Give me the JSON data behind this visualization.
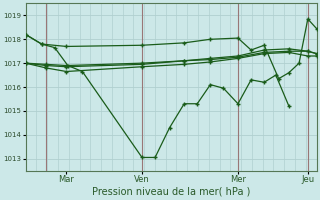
{
  "xlabel": "Pression niveau de la mer( hPa )",
  "bg_color": "#cce8e8",
  "grid_color": "#b0d0d0",
  "line_color": "#1a5c1a",
  "vline_color": "#997777",
  "ylim": [
    1012.5,
    1019.5
  ],
  "ytick_positions": [
    1013,
    1014,
    1015,
    1016,
    1017,
    1018,
    1019
  ],
  "ytick_labels": [
    "1013",
    "1014",
    "1015",
    "1016",
    "1017",
    "1018",
    "1019"
  ],
  "xtick_positions": [
    0.14,
    0.4,
    0.73,
    0.97
  ],
  "xtick_labels": [
    "Mar",
    "Ven",
    "Mer",
    "Jeu"
  ],
  "vline_positions": [
    0.07,
    0.4,
    0.73,
    0.97
  ],
  "series": [
    {
      "x": [
        0.0,
        0.055,
        0.1,
        0.145,
        0.195,
        0.4,
        0.445,
        0.495,
        0.545,
        0.59,
        0.635,
        0.68,
        0.73,
        0.775,
        0.82,
        0.86,
        0.905
      ],
      "y": [
        1018.2,
        1017.8,
        1017.65,
        1016.9,
        1016.65,
        1013.05,
        1013.05,
        1014.3,
        1015.3,
        1015.3,
        1016.1,
        1015.95,
        1015.3,
        1016.3,
        1016.2,
        1016.5,
        1015.2
      ]
    },
    {
      "x": [
        0.0,
        0.07,
        0.14,
        0.4,
        0.545,
        0.635,
        0.73,
        0.82,
        0.905,
        0.97,
        1.0
      ],
      "y": [
        1017.0,
        1016.9,
        1016.85,
        1016.95,
        1017.1,
        1017.2,
        1017.3,
        1017.55,
        1017.6,
        1017.5,
        1017.4
      ]
    },
    {
      "x": [
        0.0,
        0.07,
        0.14,
        0.4,
        0.545,
        0.635,
        0.73,
        0.82,
        0.905,
        0.97,
        1.0
      ],
      "y": [
        1017.0,
        1016.95,
        1016.9,
        1017.0,
        1017.1,
        1017.15,
        1017.25,
        1017.45,
        1017.5,
        1017.5,
        1017.4
      ]
    },
    {
      "x": [
        0.0,
        0.055,
        0.14,
        0.4,
        0.545,
        0.635,
        0.73,
        0.775,
        0.82,
        0.87,
        0.905,
        0.94,
        0.97,
        1.0
      ],
      "y": [
        1018.2,
        1017.8,
        1017.7,
        1017.75,
        1017.85,
        1018.0,
        1018.05,
        1017.55,
        1017.75,
        1016.35,
        1016.6,
        1017.0,
        1018.85,
        1018.45
      ]
    },
    {
      "x": [
        0.0,
        0.07,
        0.14,
        0.4,
        0.545,
        0.635,
        0.73,
        0.82,
        0.905,
        0.97,
        1.0
      ],
      "y": [
        1017.0,
        1016.8,
        1016.65,
        1016.85,
        1016.95,
        1017.05,
        1017.2,
        1017.4,
        1017.45,
        1017.3,
        1017.3
      ]
    }
  ],
  "figsize": [
    3.2,
    2.0
  ],
  "dpi": 100
}
